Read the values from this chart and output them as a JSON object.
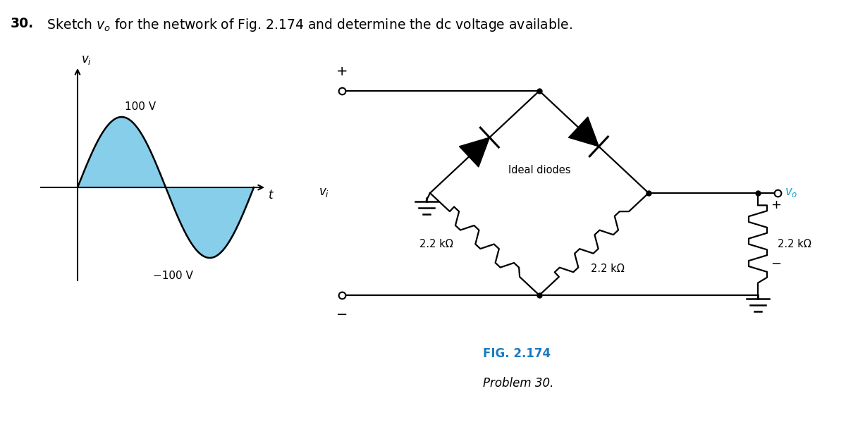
{
  "bg_color": "#ffffff",
  "sine_color": "#87CEEB",
  "line_color": "#000000",
  "fig_label_color": "#1a7abf",
  "vo_color": "#1a9fcc",
  "title_number": "30.",
  "title_rest": "  Sketch $v_o$ for the network of Fig. 2.174 and determine the dc voltage available.",
  "label_100V": "100 V",
  "label_m100V": "−100 V",
  "label_ideal_diodes": "Ideal diodes",
  "label_R1": "2.2 kΩ",
  "label_R2": "2.2 kΩ",
  "label_R3": "2.2 kΩ",
  "fig_caption_bold": "FIG. 2.174",
  "fig_caption_italic": "Problem 30."
}
